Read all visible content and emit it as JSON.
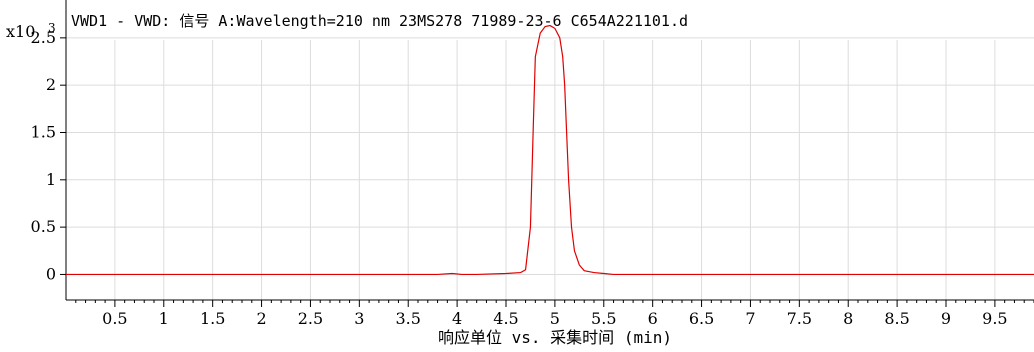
{
  "chart_data": {
    "type": "line",
    "title": "VWD1 - VWD: 信号 A:Wavelength=210 nm 23MS278 71989-23-6 C654A221101.d",
    "y_scale_label": "x10",
    "y_scale_exponent": "3",
    "xlabel": "响应单位 vs. 采集时间 (min)",
    "ylabel": "",
    "xlim": [
      0.0,
      9.9
    ],
    "ylim": [
      -0.27,
      2.9
    ],
    "x_ticks": [
      0.5,
      1,
      1.5,
      2,
      2.5,
      3,
      3.5,
      4,
      4.5,
      5,
      5.5,
      6,
      6.5,
      7,
      7.5,
      8,
      8.5,
      9,
      9.5
    ],
    "x_tick_labels": [
      "0.5",
      "1",
      "1.5",
      "2",
      "2.5",
      "3",
      "3.5",
      "4",
      "4.5",
      "5",
      "5.5",
      "6",
      "6.5",
      "7",
      "7.5",
      "8",
      "8.5",
      "9",
      "9.5"
    ],
    "y_ticks": [
      0,
      0.5,
      1,
      1.5,
      2,
      2.5
    ],
    "y_tick_labels": [
      "0",
      "0.5",
      "1",
      "1.5",
      "2",
      "2.5"
    ],
    "grid": true,
    "line_color": "#e00000",
    "series": [
      {
        "x": [
          0.0,
          1.0,
          2.0,
          3.0,
          3.8,
          3.95,
          4.05,
          4.2,
          4.5,
          4.65,
          4.7,
          4.75,
          4.78,
          4.8,
          4.85,
          4.9,
          4.95,
          5.0,
          5.05,
          5.08,
          5.1,
          5.12,
          5.14,
          5.17,
          5.2,
          5.25,
          5.3,
          5.4,
          5.5,
          5.6,
          6.0,
          7.0,
          8.0,
          9.0,
          9.9
        ],
        "y": [
          0.0,
          0.0,
          0.0,
          0.0,
          0.0,
          0.01,
          0.0,
          0.0,
          0.01,
          0.02,
          0.05,
          0.5,
          1.6,
          2.3,
          2.55,
          2.62,
          2.63,
          2.6,
          2.5,
          2.3,
          2.0,
          1.5,
          1.0,
          0.5,
          0.25,
          0.1,
          0.04,
          0.02,
          0.01,
          0.0,
          0.0,
          0.0,
          0.0,
          0.0,
          0.0
        ]
      }
    ]
  }
}
